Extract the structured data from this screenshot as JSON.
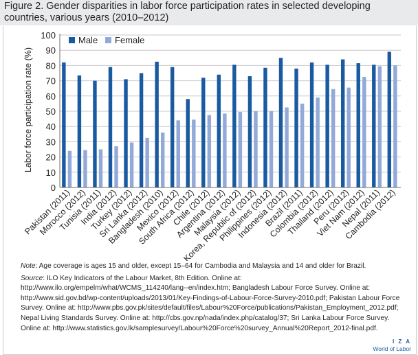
{
  "title": "Figure 2. Gender disparities in labor force participation rates in selected developing countries, various years (2010–2012)",
  "chart_data": {
    "type": "bar",
    "title": "Figure 2. Gender disparities in labor force participation rates in selected developing countries, various years (2010–2012)",
    "xlabel": "",
    "ylabel": "Labor force participation rate (%)",
    "ylim": [
      0,
      100
    ],
    "yticks": [
      "0",
      "10",
      "20",
      "30",
      "40",
      "50",
      "60",
      "70",
      "80",
      "90",
      "100"
    ],
    "legend_position": "top-left",
    "colors": {
      "Male": "#1a5aa0",
      "Female": "#93a9d8"
    },
    "categories": [
      "Pakistan (2011)",
      "Morocco (2012)",
      "Tunisia (2011)",
      "India (2012)",
      "Turkey (2012)",
      "Sri Lanka (2012)",
      "Bangladesh (2010)",
      "Mexico (2012)",
      "South Africa (2012)",
      "Chile (2012)",
      "Argentina (2012)",
      "Malaysia (2012)",
      "Korea, Republic of (2012)",
      "Philippines (2012)",
      "Indonesia (2012)",
      "Brazil (2011)",
      "Colombia (2012)",
      "Thailand (2012)",
      "Peru (2012)",
      "Viet Nam (2012)",
      "Nepal (2011)",
      "Cambodia (2012)"
    ],
    "series": [
      {
        "name": "Male",
        "values": [
          82,
          73.5,
          70,
          79,
          71,
          75,
          82.5,
          79,
          58,
          72,
          74,
          80.5,
          73,
          78.5,
          85,
          78,
          82,
          80.5,
          84,
          81.5,
          80.5,
          89
        ]
      },
      {
        "name": "Female",
        "values": [
          24,
          24.5,
          25,
          27,
          29.5,
          32.5,
          36,
          44,
          44.5,
          47.5,
          48.5,
          49.5,
          50,
          50,
          52.5,
          55,
          59,
          64.5,
          65.5,
          72.5,
          79.5,
          80
        ]
      }
    ]
  },
  "note": {
    "label": "Note",
    "text": ": Age coverage is ages 15 and older, except 15–64 for Cambodia and Malaysia and 14 and older for Brazil."
  },
  "source": {
    "label": "Source",
    "text": ": ILO Key Indicators of the Labour Market, 8th Edition. Online at: http://www.ilo.org/empelm/what/WCMS_114240/lang--en/index.htm; Bangladesh Labour Force Survey. Online at: http://www.sid.gov.bd/wp-content/uploads/2013/01/Key-Findings-of-Labour-Force-Survey-2010.pdf; Pakistan Labour Force Survey. Online at: http://www.pbs.gov.pk/sites/default/files/Labour%20Force/publications/Pakistan_Employment_2012.pdf; Nepal Living Standards Survey. Online at: http://cbs.gov.np/nada/index.php/catalog/37; Sri Lanka Labour Force Survey. Online at: http://www.statistics.gov.lk/samplesurvey/Labour%20Force%20survey_Annual%20Report_2012-final.pdf."
  },
  "branding": {
    "line1": "I Z A",
    "line2": "World of Labor"
  }
}
